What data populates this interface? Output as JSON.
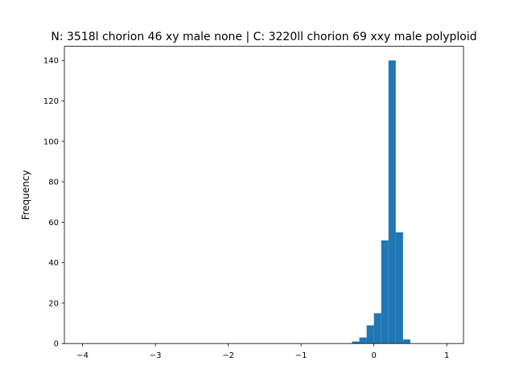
{
  "chart_data": {
    "type": "bar",
    "title": "N: 3518l chorion 46 xy male none | C: 3220ll chorion 69 xxy male polyploid",
    "xlabel": "",
    "ylabel": "Frequency",
    "xlim": [
      -4.25,
      1.23
    ],
    "ylim": [
      0,
      147
    ],
    "xticks": [
      -4,
      -3,
      -2,
      -1,
      0,
      1
    ],
    "xtick_labels": [
      "−4",
      "−3",
      "−2",
      "−1",
      "0",
      "1"
    ],
    "yticks": [
      0,
      20,
      40,
      60,
      80,
      100,
      120,
      140
    ],
    "ytick_labels": [
      "0",
      "20",
      "40",
      "60",
      "80",
      "100",
      "120",
      "140"
    ],
    "grid": false,
    "bar_color": "#1f77b4",
    "bins": [
      {
        "x0": -0.3,
        "x1": -0.2,
        "count": 1
      },
      {
        "x0": -0.2,
        "x1": -0.1,
        "count": 3
      },
      {
        "x0": -0.1,
        "x1": 0.0,
        "count": 9
      },
      {
        "x0": 0.0,
        "x1": 0.1,
        "count": 15
      },
      {
        "x0": 0.1,
        "x1": 0.2,
        "count": 51
      },
      {
        "x0": 0.2,
        "x1": 0.3,
        "count": 140
      },
      {
        "x0": 0.3,
        "x1": 0.4,
        "count": 55
      },
      {
        "x0": 0.4,
        "x1": 0.5,
        "count": 2
      }
    ]
  }
}
